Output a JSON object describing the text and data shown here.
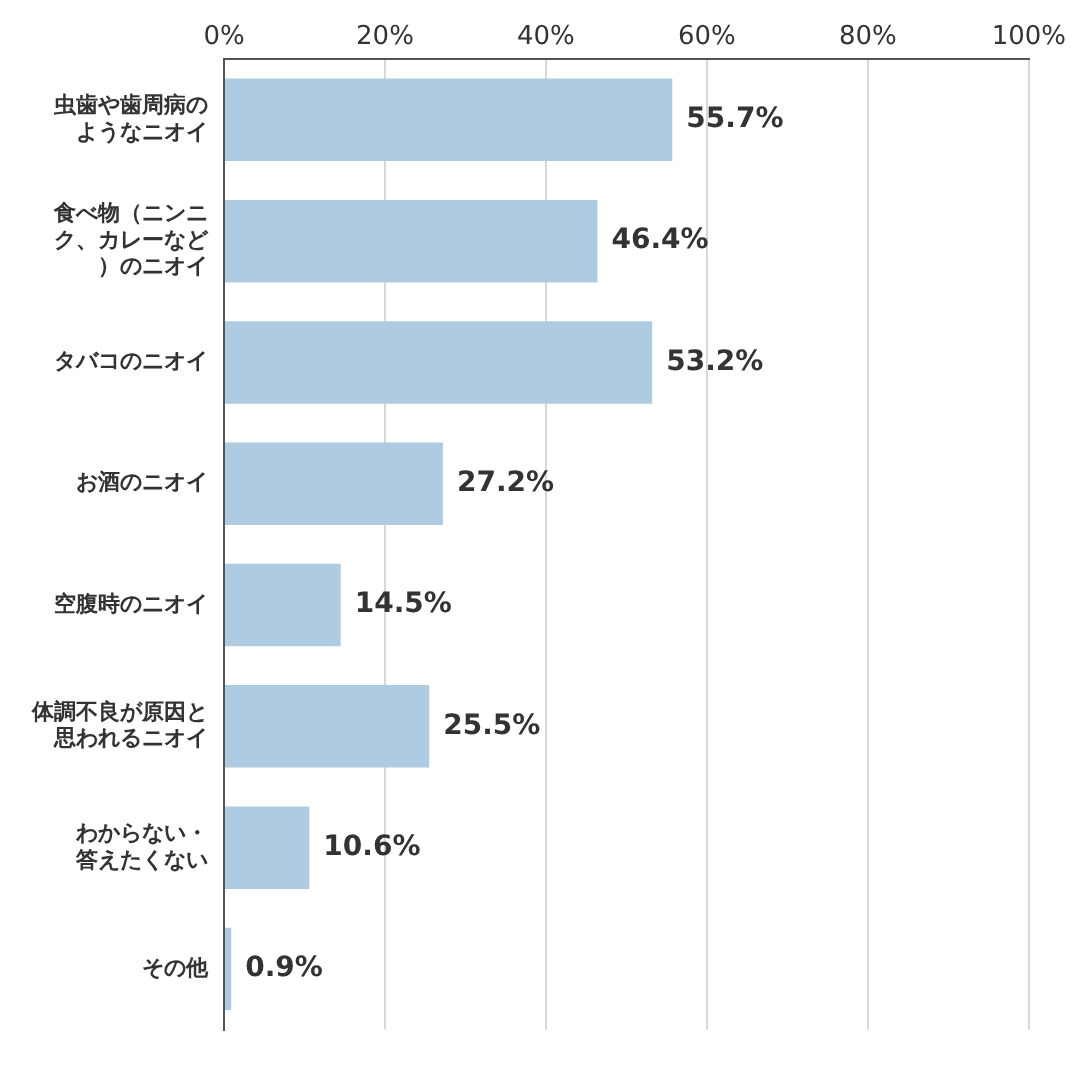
{
  "chart_data": {
    "type": "bar",
    "orientation": "horizontal",
    "categories": [
      "虫歯や歯周病のようなニオイ",
      "食べ物（ニンニク、カレーなど）のニオイ",
      "タバコのニオイ",
      "お酒のニオイ",
      "空腹時のニオイ",
      "体調不良が原因と思われるニオイ",
      "わからない・答えたくない",
      "その他"
    ],
    "values": [
      55.7,
      46.4,
      53.2,
      27.2,
      14.5,
      25.5,
      10.6,
      0.9
    ],
    "value_labels": [
      "55.7%",
      "46.4%",
      "53.2%",
      "27.2%",
      "14.5%",
      "25.5%",
      "10.6%",
      "0.9%"
    ],
    "color": "#aecbe2",
    "xlim": [
      0,
      100
    ],
    "xticks": [
      {
        "value": 0,
        "label": "0%"
      },
      {
        "value": 20,
        "label": "20%"
      },
      {
        "value": 40,
        "label": "40%"
      },
      {
        "value": 60,
        "label": "60%"
      },
      {
        "value": 80,
        "label": "80%"
      },
      {
        "value": 100,
        "label": "100%"
      }
    ],
    "grid": "x",
    "legend": false
  }
}
